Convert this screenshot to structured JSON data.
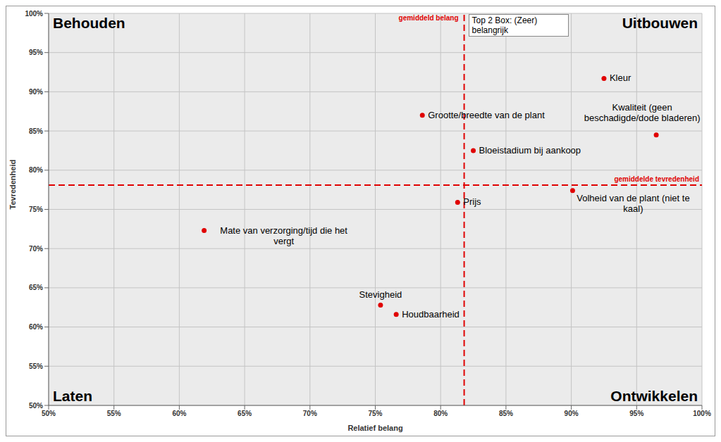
{
  "chart_data": {
    "type": "scatter",
    "x_label": "Relatief belang",
    "y_label": "Tevredenheid",
    "xlim": [
      50,
      100
    ],
    "xticks": [
      {
        "value": 50,
        "label": "50%"
      },
      {
        "value": 55,
        "label": "55%"
      },
      {
        "value": 60,
        "label": "60%"
      },
      {
        "value": 65,
        "label": "65%"
      },
      {
        "value": 70,
        "label": "70%"
      },
      {
        "value": 75,
        "label": "75%"
      },
      {
        "value": 80,
        "label": "80%"
      },
      {
        "value": 85,
        "label": "85%"
      },
      {
        "value": 90,
        "label": "90%"
      },
      {
        "value": 95,
        "label": "95%"
      },
      {
        "value": 100,
        "label": "100%"
      }
    ],
    "ylim": [
      50,
      100
    ],
    "yticks": [
      {
        "value": 50,
        "label": "50%"
      },
      {
        "value": 55,
        "label": "55%"
      },
      {
        "value": 60,
        "label": "60%"
      },
      {
        "value": 65,
        "label": "65%"
      },
      {
        "value": 70,
        "label": "70%"
      },
      {
        "value": 75,
        "label": "75%"
      },
      {
        "value": 80,
        "label": "80%"
      },
      {
        "value": 85,
        "label": "85%"
      },
      {
        "value": 90,
        "label": "90%"
      },
      {
        "value": 95,
        "label": "95%"
      },
      {
        "value": 100,
        "label": "100%"
      }
    ],
    "grid": true,
    "legend": "top",
    "series": [
      {
        "name": "Top 2 Box: (Zeer) belangrijk",
        "color": "#e00000",
        "marker": "circle",
        "x": [
          92.5,
          96.5,
          78.6,
          82.5,
          90.1,
          81.3,
          61.9,
          75.4,
          76.6
        ],
        "values": [
          91.7,
          84.5,
          87.0,
          82.5,
          77.4,
          75.9,
          72.3,
          62.8,
          61.6
        ],
        "point_labels": [
          "Kleur",
          "Kwaliteit (geen beschadigde/dode bladeren)",
          "Grootte/breedte van de plant",
          "Bloeistadium bij aankoop",
          "Volheid van de plant (niet te kaal)",
          "Prijs",
          "Mate van verzorging/tijd die het vergt",
          "Stevigheid",
          "Houdbaarheid"
        ]
      }
    ],
    "reference_lines": [
      {
        "axis": "x",
        "value": 81.8,
        "label": "gemiddeld belang",
        "color": "#e00000",
        "line_style": "dashed"
      },
      {
        "axis": "y",
        "value": 78.1,
        "label": "gemiddelde tevredenheid",
        "color": "#e00000",
        "line_style": "dashed"
      }
    ],
    "quadrants": {
      "top_left": "Behouden",
      "top_right": "Uitbouwen",
      "bottom_left": "Laten",
      "bottom_right": "Ontwikkelen"
    }
  }
}
